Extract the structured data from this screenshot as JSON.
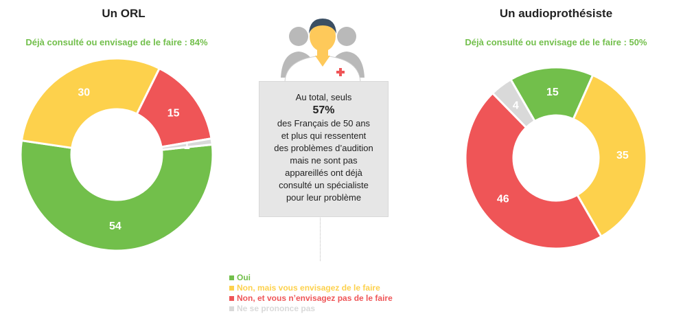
{
  "charts": {
    "left": {
      "title": "Un ORL",
      "subtitle": "Déjà consulté ou envisage de le faire : 84%"
    },
    "right": {
      "title": "Un audioprothésiste",
      "subtitle": "Déjà consulté ou envisage de le faire : 50%"
    }
  },
  "center_note": {
    "lines_before": [
      "Au total, seuls"
    ],
    "highlight": "57%",
    "lines_after": [
      "des Français de 50 ans",
      "et plus qui ressentent",
      "des problèmes d’audition",
      "mais ne sont pas",
      "appareillés ont déjà",
      "consulté un spécialiste",
      "pour leur problème"
    ]
  },
  "icons": {
    "person": "doctor-group-icon",
    "cross": "medical-cross-icon"
  },
  "colors": {
    "oui": "#72bf4b",
    "envisage": "#fdd14c",
    "non": "#ef5557",
    "nsp": "#d9d9d9",
    "accent_green": "#72bf4b"
  },
  "legend": [
    {
      "label": "Oui",
      "color": "#72bf4b"
    },
    {
      "label": "Non, mais vous envisagez de le faire",
      "color": "#fdd14c"
    },
    {
      "label": "Non, et vous n’envisagez pas de le faire",
      "color": "#ef5557"
    },
    {
      "label": "Ne se prononce pas",
      "color": "#d9d9d9"
    }
  ],
  "chart_data": [
    {
      "type": "pie",
      "title": "Un ORL",
      "subtitle": "Déjà consulté ou envisage de le faire : 84%",
      "categories": [
        "Oui",
        "Non, mais vous envisagez de le faire",
        "Non, et vous n’envisagez pas de le faire",
        "Ne se prononce pas"
      ],
      "values": [
        54,
        30,
        15,
        1
      ],
      "labels": [
        "54",
        "30",
        "15",
        "1"
      ],
      "colors": [
        "#72bf4b",
        "#fdd14c",
        "#ef5557",
        "#d9d9d9"
      ]
    },
    {
      "type": "pie",
      "title": "Un audioprothésiste",
      "subtitle": "Déjà consulté ou envisage de le faire : 50%",
      "categories": [
        "Oui",
        "Non, mais vous envisagez de le faire",
        "Non, et vous n’envisagez pas de le faire",
        "Ne se prononce pas"
      ],
      "values": [
        15,
        35,
        46,
        4
      ],
      "labels": [
        "15",
        "35",
        "46",
        "4"
      ],
      "colors": [
        "#72bf4b",
        "#fdd14c",
        "#ef5557",
        "#d9d9d9"
      ]
    }
  ]
}
